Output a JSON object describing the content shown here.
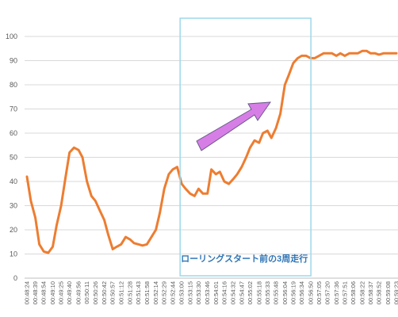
{
  "chart_data": {
    "type": "line",
    "ylim": [
      0,
      100
    ],
    "yticks": [
      0,
      10,
      20,
      30,
      40,
      50,
      60,
      70,
      80,
      90,
      100
    ],
    "grid": true,
    "x_tick_labels": [
      "00:48:24",
      "00:48:39",
      "00:48:54",
      "00:49:10",
      "00:49:25",
      "00:49:40",
      "00:49:56",
      "00:50:11",
      "00:50:26",
      "00:50:42",
      "00:50:57",
      "00:51:12",
      "00:51:28",
      "00:51:43",
      "00:51:58",
      "00:52:14",
      "00:52:29",
      "00:52:44",
      "00:53:00",
      "00:53:15",
      "00:53:30",
      "00:53:46",
      "00:54:01",
      "00:54:16",
      "00:54:32",
      "00:54:47",
      "00:55:02",
      "00:55:18",
      "00:55:33",
      "00:55:48",
      "00:56:04",
      "00:56:19",
      "00:56:34",
      "00:56:50",
      "00:57:05",
      "00:57:20",
      "00:57:36",
      "00:57:51",
      "00:58:06",
      "00:58:22",
      "00:58:37",
      "00:58:52",
      "00:59:08",
      "00:59:23"
    ],
    "series": [
      {
        "color": "#ed7d31",
        "x": [
          "00:48:24",
          "00:48:31",
          "00:48:39",
          "00:48:46",
          "00:48:54",
          "00:49:02",
          "00:49:10",
          "00:49:17",
          "00:49:25",
          "00:49:33",
          "00:49:40",
          "00:49:48",
          "00:49:56",
          "00:50:03",
          "00:50:11",
          "00:50:19",
          "00:50:26",
          "00:50:34",
          "00:50:42",
          "00:50:49",
          "00:50:57",
          "00:51:04",
          "00:51:12",
          "00:51:20",
          "00:51:28",
          "00:51:35",
          "00:51:43",
          "00:51:50",
          "00:51:58",
          "00:52:06",
          "00:52:14",
          "00:52:21",
          "00:52:29",
          "00:52:37",
          "00:52:44",
          "00:52:52",
          "00:53:00",
          "00:53:07",
          "00:53:15",
          "00:53:23",
          "00:53:30",
          "00:53:38",
          "00:53:46",
          "00:53:53",
          "00:54:01",
          "00:54:08",
          "00:54:16",
          "00:54:24",
          "00:54:32",
          "00:54:39",
          "00:54:47",
          "00:54:55",
          "00:55:02",
          "00:55:10",
          "00:55:18",
          "00:55:25",
          "00:55:33",
          "00:55:40",
          "00:55:48",
          "00:55:56",
          "00:56:04",
          "00:56:11",
          "00:56:19",
          "00:56:27",
          "00:56:34",
          "00:56:42",
          "00:56:50",
          "00:56:57",
          "00:57:05",
          "00:57:13",
          "00:57:20",
          "00:57:28",
          "00:57:36",
          "00:57:43",
          "00:57:51",
          "00:57:59",
          "00:58:06",
          "00:58:14",
          "00:58:22",
          "00:58:30",
          "00:58:37",
          "00:58:45",
          "00:58:52",
          "00:59:00",
          "00:59:08",
          "00:59:15",
          "00:59:23"
        ],
        "values": [
          42,
          32,
          25,
          14,
          11,
          10.5,
          13,
          22,
          30,
          42,
          52,
          54,
          53,
          50,
          40,
          34,
          32,
          28,
          24,
          18,
          12,
          13,
          14,
          17,
          16,
          14.5,
          14,
          13.5,
          14,
          17,
          20,
          27,
          37,
          43,
          45,
          46,
          39,
          37,
          35,
          34,
          37,
          35,
          35,
          45,
          43,
          44,
          40,
          39,
          41,
          43,
          46,
          50,
          54,
          57,
          56,
          60,
          61,
          58,
          62,
          68,
          80,
          84,
          89,
          91,
          92,
          92,
          91,
          91,
          92,
          93,
          93,
          93,
          92,
          93,
          92,
          93,
          93,
          93,
          94,
          94,
          93,
          93,
          92.5,
          93,
          93,
          93,
          93
        ]
      }
    ],
    "annotations": [
      {
        "text": "ローリングスタート前の3周走行",
        "color": "#2e75b6"
      }
    ]
  }
}
